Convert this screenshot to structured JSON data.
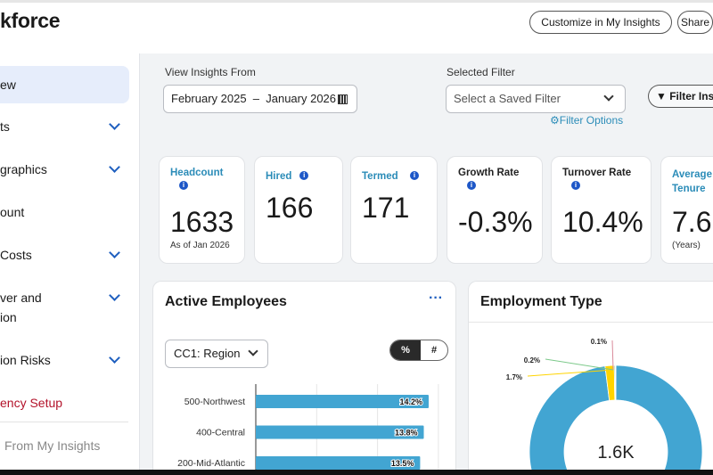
{
  "header": {
    "title": "kforce",
    "customize_label": "Customize in My Insights",
    "share_label": "Share"
  },
  "sidebar": {
    "items": [
      {
        "label": "ew",
        "active": true
      },
      {
        "label": "ts",
        "chevron": true
      },
      {
        "label": "graphics",
        "chevron": true
      },
      {
        "label": "ount"
      },
      {
        "label": "Costs",
        "chevron": true
      },
      {
        "label": "ver and",
        "label2": "ion",
        "chevron": true
      },
      {
        "label": "ion Risks",
        "chevron": true
      },
      {
        "label": "ency Setup",
        "color": "#b3122a"
      },
      {
        "label": "From My Insights",
        "color": "#888"
      }
    ]
  },
  "filters": {
    "view_label": "View Insights From",
    "date_range": "February 2025  –  January 2026",
    "selected_label": "Selected Filter",
    "saved_placeholder": "Select a Saved Filter",
    "filter_options": "Filter Options",
    "filter_insights": "Filter Ins"
  },
  "cards": [
    {
      "title": "Headcount",
      "value": "1633",
      "sub": "As of Jan 2026"
    },
    {
      "title": "Hired",
      "value": "166"
    },
    {
      "title": "Termed",
      "value": "171"
    },
    {
      "title": "Growth Rate",
      "value": "-0.3%"
    },
    {
      "title": "Turnover Rate",
      "value": "10.4%"
    },
    {
      "title": "Average Tenure",
      "value": "7.6",
      "sub": "(Years)"
    }
  ],
  "active_employees": {
    "title": "Active Employees",
    "more": "···",
    "dropdown": "CC1: Region",
    "toggle_pct": "%",
    "toggle_num": "#"
  },
  "employment_type": {
    "title": "Employment Type",
    "center": "1.6K"
  },
  "chart_data": [
    {
      "type": "bar",
      "orientation": "horizontal",
      "categories": [
        "500-Northwest",
        "400-Central",
        "200-Mid-Atlantic"
      ],
      "values": [
        14.2,
        13.8,
        13.5
      ],
      "labels": [
        "14.2%",
        "13.8%",
        "13.5%"
      ],
      "color": "#42a5d2",
      "grid": true
    },
    {
      "type": "pie",
      "donut": true,
      "values": [
        98.0,
        1.7,
        0.2,
        0.1
      ],
      "labels": [
        "",
        "1.7%",
        "0.2%",
        "0.1%"
      ],
      "colors": [
        "#42a5d2",
        "#ffd400",
        "#7cc98a",
        "#d98a9a"
      ],
      "center_label": "1.6K"
    }
  ]
}
